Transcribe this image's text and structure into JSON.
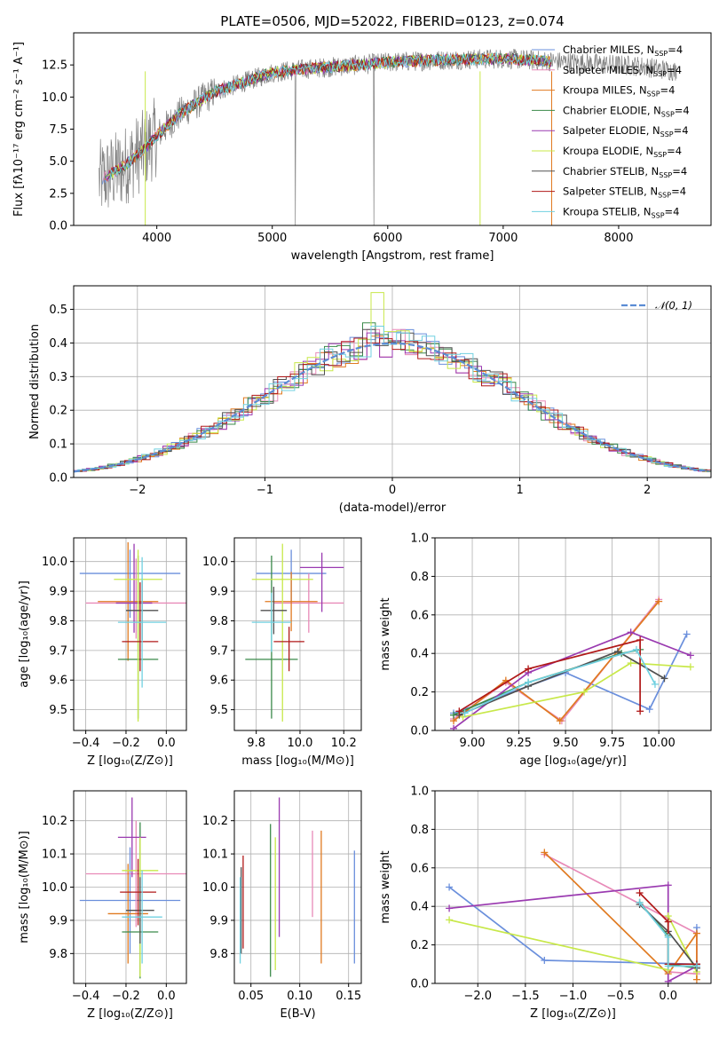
{
  "title": "PLATE=0506, MJD=52022, FIBERID=0123, z=0.074",
  "colors": {
    "Chabrier MILES": "#6a8fdc",
    "Salpeter MILES": "#e88ab8",
    "Kroupa MILES": "#e07a20",
    "Chabrier ELODIE": "#3a8a4a",
    "Salpeter ELODIE": "#9a3ab0",
    "Kroupa ELODIE": "#c8e84a",
    "Chabrier STELIB": "#505050",
    "Salpeter STELIB": "#b01818",
    "Kroupa STELIB": "#70d0e0",
    "data": "#808080"
  },
  "legend_models": [
    {
      "name": "Chabrier MILES, N",
      "sub": "SSP",
      "suffix": "=4"
    },
    {
      "name": "Salpeter MILES, N",
      "sub": "SSP",
      "suffix": "=4"
    },
    {
      "name": "Kroupa MILES, N",
      "sub": "SSP",
      "suffix": "=4"
    },
    {
      "name": "Chabrier ELODIE, N",
      "sub": "SSP",
      "suffix": "=4"
    },
    {
      "name": "Salpeter ELODIE, N",
      "sub": "SSP",
      "suffix": "=4"
    },
    {
      "name": "Kroupa ELODIE, N",
      "sub": "SSP",
      "suffix": "=4"
    },
    {
      "name": "Chabrier STELIB, N",
      "sub": "SSP",
      "suffix": "=4"
    },
    {
      "name": "Salpeter STELIB, N",
      "sub": "SSP",
      "suffix": "=4"
    },
    {
      "name": "Kroupa STELIB, N",
      "sub": "SSP",
      "suffix": "=4"
    }
  ],
  "chart_data": [
    {
      "id": "spectrum",
      "type": "line",
      "xlabel": "wavelength [Angstrom, rest frame]",
      "ylabel": "Flux [fλ10⁻¹⁷ erg cm⁻² s⁻¹ A⁻¹]",
      "xlim": [
        3280,
        8800
      ],
      "ylim": [
        0,
        15
      ],
      "xticks": [
        4000,
        5000,
        6000,
        7000,
        8000
      ],
      "yticks": [
        0.0,
        2.5,
        5.0,
        7.5,
        10.0,
        12.5
      ],
      "continuum": [
        [
          3500,
          3.5
        ],
        [
          3700,
          4.5
        ],
        [
          3900,
          6.0
        ],
        [
          4000,
          7.0
        ],
        [
          4200,
          8.7
        ],
        [
          4500,
          10.4
        ],
        [
          4800,
          11.3
        ],
        [
          5000,
          11.9
        ],
        [
          5300,
          12.2
        ],
        [
          5600,
          12.4
        ],
        [
          6000,
          12.7
        ],
        [
          6500,
          12.9
        ],
        [
          7000,
          13.0
        ],
        [
          7400,
          12.8
        ],
        [
          7800,
          12.6
        ],
        [
          8200,
          12.4
        ],
        [
          8500,
          12.0
        ]
      ]
    },
    {
      "id": "residuals",
      "type": "histogram",
      "xlabel": "(data-model)/error",
      "ylabel": "Normed distribution",
      "xlim": [
        -2.5,
        2.5
      ],
      "ylim": [
        0,
        0.57
      ],
      "xticks": [
        -2,
        -1,
        0,
        1,
        2
      ],
      "yticks": [
        0.0,
        0.1,
        0.2,
        0.3,
        0.4,
        0.5
      ],
      "reference": {
        "label": "𝒩(0, 1)",
        "mean": 0,
        "sigma": 1
      },
      "peak_values": [
        0.41,
        0.44,
        0.42,
        0.46,
        0.43,
        0.55,
        0.44,
        0.4,
        0.45
      ]
    },
    {
      "id": "age_vs_Z",
      "type": "scatter",
      "xlabel": "Z [log₁₀(Z/Z⊙)]",
      "ylabel": "age  [log₁₀(age/yr)]",
      "xlim": [
        -0.46,
        0.1
      ],
      "ylim": [
        9.43,
        10.08
      ],
      "xticks": [
        -0.4,
        -0.2,
        0.0
      ],
      "yticks": [
        9.5,
        9.6,
        9.7,
        9.8,
        9.9,
        10.0
      ],
      "points": [
        {
          "model": "Chabrier MILES",
          "x": -0.18,
          "xerr": 0.25,
          "y": 9.96,
          "yerr": [
            0.15,
            0.08
          ]
        },
        {
          "model": "Salpeter MILES",
          "x": -0.15,
          "xerr": 0.25,
          "y": 9.86,
          "yerr": [
            0.12,
            0.15
          ]
        },
        {
          "model": "Kroupa MILES",
          "x": -0.19,
          "xerr": 0.15,
          "y": 9.865,
          "yerr": [
            0.2,
            0.2
          ]
        },
        {
          "model": "Chabrier ELODIE",
          "x": -0.14,
          "xerr": 0.1,
          "y": 9.67,
          "yerr": [
            0.2,
            0.35
          ]
        },
        {
          "model": "Salpeter ELODIE",
          "x": -0.16,
          "xerr": 0.09,
          "y": 9.86,
          "yerr": [
            0.1,
            0.2
          ]
        },
        {
          "model": "Kroupa ELODIE",
          "x": -0.14,
          "xerr": 0.12,
          "y": 9.94,
          "yerr": [
            0.48,
            0.1
          ]
        },
        {
          "model": "Chabrier STELIB",
          "x": -0.12,
          "xerr": 0.08,
          "y": 9.835,
          "yerr": [
            0.1,
            0.1
          ]
        },
        {
          "model": "Salpeter STELIB",
          "x": -0.13,
          "xerr": 0.09,
          "y": 9.73,
          "yerr": [
            0.1,
            0.2
          ]
        },
        {
          "model": "Kroupa STELIB",
          "x": -0.12,
          "xerr": 0.12,
          "y": 9.795,
          "yerr": [
            0.22,
            0.22
          ]
        }
      ]
    },
    {
      "id": "age_vs_mass",
      "type": "scatter",
      "xlabel": "mass [log₁₀(M/M⊙)]",
      "ylabel": "",
      "xlim": [
        9.7,
        10.28
      ],
      "ylim": [
        9.43,
        10.08
      ],
      "xticks": [
        9.8,
        10.0,
        10.2
      ],
      "yticks": [
        9.5,
        9.6,
        9.7,
        9.8,
        9.9,
        10.0
      ],
      "points": [
        {
          "model": "Chabrier MILES",
          "x": 9.96,
          "xerr": 0.16,
          "y": 9.96,
          "yerr": [
            0.1,
            0.08
          ]
        },
        {
          "model": "Salpeter MILES",
          "x": 10.04,
          "xerr": 0.16,
          "y": 9.86,
          "yerr": [
            0.1,
            0.1
          ]
        },
        {
          "model": "Kroupa MILES",
          "x": 9.96,
          "xerr": 0.12,
          "y": 9.865,
          "yerr": [
            0.1,
            0.1
          ]
        },
        {
          "model": "Chabrier ELODIE",
          "x": 9.87,
          "xerr": 0.12,
          "y": 9.67,
          "yerr": [
            0.2,
            0.35
          ]
        },
        {
          "model": "Salpeter ELODIE",
          "x": 10.1,
          "xerr": 0.1,
          "y": 9.98,
          "yerr": [
            0.15,
            0.05
          ]
        },
        {
          "model": "Kroupa ELODIE",
          "x": 9.92,
          "xerr": 0.14,
          "y": 9.94,
          "yerr": [
            0.48,
            0.12
          ]
        },
        {
          "model": "Chabrier STELIB",
          "x": 9.88,
          "xerr": 0.06,
          "y": 9.835,
          "yerr": [
            0.08,
            0.08
          ]
        },
        {
          "model": "Salpeter STELIB",
          "x": 9.95,
          "xerr": 0.07,
          "y": 9.73,
          "yerr": [
            0.1,
            0.05
          ]
        },
        {
          "model": "Kroupa STELIB",
          "x": 9.87,
          "xerr": 0.09,
          "y": 9.795,
          "yerr": [
            0.1,
            0.1
          ]
        }
      ]
    },
    {
      "id": "weight_vs_age",
      "type": "line",
      "xlabel": "age  [log₁₀(age/yr)]",
      "ylabel": "mass weight",
      "xlim": [
        8.8,
        10.28
      ],
      "ylim": [
        0,
        1
      ],
      "xticks": [
        9.0,
        9.25,
        9.5,
        9.75,
        10.0
      ],
      "yticks": [
        0.0,
        0.2,
        0.4,
        0.6,
        0.8,
        1.0
      ],
      "series": [
        {
          "model": "Chabrier MILES",
          "x": [
            8.9,
            9.5,
            9.95,
            10.15
          ],
          "y": [
            0.09,
            0.3,
            0.11,
            0.5
          ]
        },
        {
          "model": "Salpeter MILES",
          "x": [
            8.9,
            9.18,
            9.48,
            10.0
          ],
          "y": [
            0.06,
            0.25,
            0.05,
            0.68
          ]
        },
        {
          "model": "Kroupa MILES",
          "x": [
            8.9,
            9.18,
            9.47,
            10.0
          ],
          "y": [
            0.05,
            0.26,
            0.05,
            0.67
          ]
        },
        {
          "model": "Chabrier ELODIE",
          "x": [
            8.9,
            9.3,
            9.8,
            9.9
          ],
          "y": [
            0.08,
            0.25,
            0.4,
            0.42
          ]
        },
        {
          "model": "Salpeter ELODIE",
          "x": [
            8.9,
            9.3,
            9.85,
            10.17
          ],
          "y": [
            0.01,
            0.3,
            0.51,
            0.39
          ]
        },
        {
          "model": "Kroupa ELODIE",
          "x": [
            8.95,
            9.6,
            9.85,
            10.17
          ],
          "y": [
            0.07,
            0.2,
            0.35,
            0.33
          ]
        },
        {
          "model": "Chabrier STELIB",
          "x": [
            8.93,
            9.3,
            9.78,
            10.03
          ],
          "y": [
            0.08,
            0.23,
            0.41,
            0.27
          ]
        },
        {
          "model": "Salpeter STELIB",
          "x": [
            8.93,
            9.3,
            9.9,
            9.9
          ],
          "y": [
            0.1,
            0.32,
            0.47,
            0.1
          ]
        },
        {
          "model": "Kroupa STELIB",
          "x": [
            8.96,
            9.3,
            9.88,
            9.98
          ],
          "y": [
            0.09,
            0.25,
            0.42,
            0.24
          ]
        }
      ]
    },
    {
      "id": "mass_vs_Z",
      "type": "scatter",
      "xlabel": "Z [log₁₀(Z/Z⊙)]",
      "ylabel": "mass [log₁₀(M/M⊙)]",
      "xlim": [
        -0.46,
        0.1
      ],
      "ylim": [
        9.71,
        10.29
      ],
      "xticks": [
        -0.4,
        -0.2,
        0.0
      ],
      "yticks": [
        9.8,
        9.9,
        10.0,
        10.1,
        10.2
      ],
      "points": [
        {
          "model": "Chabrier MILES",
          "x": -0.18,
          "xerr": 0.25,
          "y": 9.96,
          "yerr": [
            0.16,
            0.16
          ]
        },
        {
          "model": "Salpeter MILES",
          "x": -0.15,
          "xerr": 0.25,
          "y": 10.04,
          "yerr": [
            0.16,
            0.16
          ]
        },
        {
          "model": "Kroupa MILES",
          "x": -0.19,
          "xerr": 0.1,
          "y": 9.92,
          "yerr": [
            0.15,
            0.15
          ]
        },
        {
          "model": "Chabrier ELODIE",
          "x": -0.13,
          "xerr": 0.09,
          "y": 9.865,
          "yerr": [
            0.14,
            0.33
          ]
        },
        {
          "model": "Salpeter ELODIE",
          "x": -0.17,
          "xerr": 0.07,
          "y": 10.15,
          "yerr": [
            0.12,
            0.12
          ]
        },
        {
          "model": "Kroupa ELODIE",
          "x": -0.13,
          "xerr": 0.09,
          "y": 10.05,
          "yerr": [
            0.32,
            0.1
          ]
        },
        {
          "model": "Chabrier STELIB",
          "x": -0.13,
          "xerr": 0.07,
          "y": 9.93,
          "yerr": [
            0.1,
            0.1
          ]
        },
        {
          "model": "Salpeter STELIB",
          "x": -0.14,
          "xerr": 0.09,
          "y": 9.985,
          "yerr": [
            0.1,
            0.1
          ]
        },
        {
          "model": "Kroupa STELIB",
          "x": -0.12,
          "xerr": 0.1,
          "y": 9.91,
          "yerr": [
            0.14,
            0.14
          ]
        }
      ]
    },
    {
      "id": "mass_vs_EBV",
      "type": "scatter",
      "xlabel": "E(B-V)",
      "ylabel": "",
      "xlim": [
        0.033,
        0.163
      ],
      "ylim": [
        9.71,
        10.29
      ],
      "xticks": [
        0.05,
        0.1,
        0.15
      ],
      "yticks": [
        9.8,
        9.9,
        10.0,
        10.1,
        10.2
      ],
      "points": [
        {
          "model": "Chabrier MILES",
          "x": 0.156,
          "y": 9.94,
          "yerr": [
            0.17,
            0.17
          ]
        },
        {
          "model": "Salpeter MILES",
          "x": 0.113,
          "y": 10.04,
          "yerr": [
            0.13,
            0.13
          ]
        },
        {
          "model": "Kroupa MILES",
          "x": 0.122,
          "y": 9.92,
          "yerr": [
            0.15,
            0.25
          ]
        },
        {
          "model": "Chabrier ELODIE",
          "x": 0.07,
          "y": 9.96,
          "yerr": [
            0.23,
            0.23
          ]
        },
        {
          "model": "Salpeter ELODIE",
          "x": 0.079,
          "y": 10.06,
          "yerr": [
            0.21,
            0.21
          ]
        },
        {
          "model": "Kroupa ELODIE",
          "x": 0.075,
          "y": 9.95,
          "yerr": [
            0.2,
            0.2
          ]
        },
        {
          "model": "Chabrier STELIB",
          "x": 0.04,
          "y": 9.93,
          "yerr": [
            0.13,
            0.13
          ]
        },
        {
          "model": "Salpeter STELIB",
          "x": 0.042,
          "y": 9.985,
          "yerr": [
            0.17,
            0.11
          ]
        },
        {
          "model": "Kroupa STELIB",
          "x": 0.039,
          "y": 9.9,
          "yerr": [
            0.13,
            0.13
          ]
        }
      ]
    },
    {
      "id": "weight_vs_Z",
      "type": "line",
      "xlabel": "Z [log₁₀(Z/Z⊙)]",
      "ylabel": "mass weight",
      "xlim": [
        -2.45,
        0.45
      ],
      "ylim": [
        0,
        1
      ],
      "xticks": [
        -2.0,
        -1.5,
        -1.0,
        -0.5,
        0.0
      ],
      "yticks": [
        0.0,
        0.2,
        0.4,
        0.6,
        0.8,
        1.0
      ],
      "series": [
        {
          "model": "Chabrier MILES",
          "x": [
            -2.3,
            -1.3,
            0.3,
            0.3
          ],
          "y": [
            0.5,
            0.12,
            0.1,
            0.29
          ]
        },
        {
          "model": "Salpeter MILES",
          "x": [
            -1.3,
            0.3,
            0.3,
            0.0
          ],
          "y": [
            0.67,
            0.26,
            0.05,
            0.06
          ]
        },
        {
          "model": "Kroupa MILES",
          "x": [
            -1.3,
            0.0,
            0.3,
            0.3
          ],
          "y": [
            0.68,
            0.05,
            0.26,
            0.02
          ]
        },
        {
          "model": "Chabrier ELODIE",
          "x": [
            -0.3,
            0.0,
            0.0,
            0.3
          ],
          "y": [
            0.42,
            0.25,
            0.1,
            0.08
          ]
        },
        {
          "model": "Salpeter ELODIE",
          "x": [
            -2.3,
            0.0,
            0.0,
            0.3
          ],
          "y": [
            0.39,
            0.51,
            0.01,
            0.09
          ]
        },
        {
          "model": "Kroupa ELODIE",
          "x": [
            -2.3,
            0.0,
            0.0,
            0.3
          ],
          "y": [
            0.33,
            0.07,
            0.35,
            0.06
          ]
        },
        {
          "model": "Chabrier STELIB",
          "x": [
            -0.3,
            0.0,
            0.3,
            0.3
          ],
          "y": [
            0.41,
            0.27,
            0.08,
            0.1
          ]
        },
        {
          "model": "Salpeter STELIB",
          "x": [
            -0.3,
            0.0,
            0.0,
            0.3
          ],
          "y": [
            0.47,
            0.32,
            0.1,
            0.1
          ]
        },
        {
          "model": "Kroupa STELIB",
          "x": [
            -0.3,
            0.0,
            0.0,
            0.3
          ],
          "y": [
            0.42,
            0.24,
            0.09,
            0.09
          ]
        }
      ]
    }
  ]
}
